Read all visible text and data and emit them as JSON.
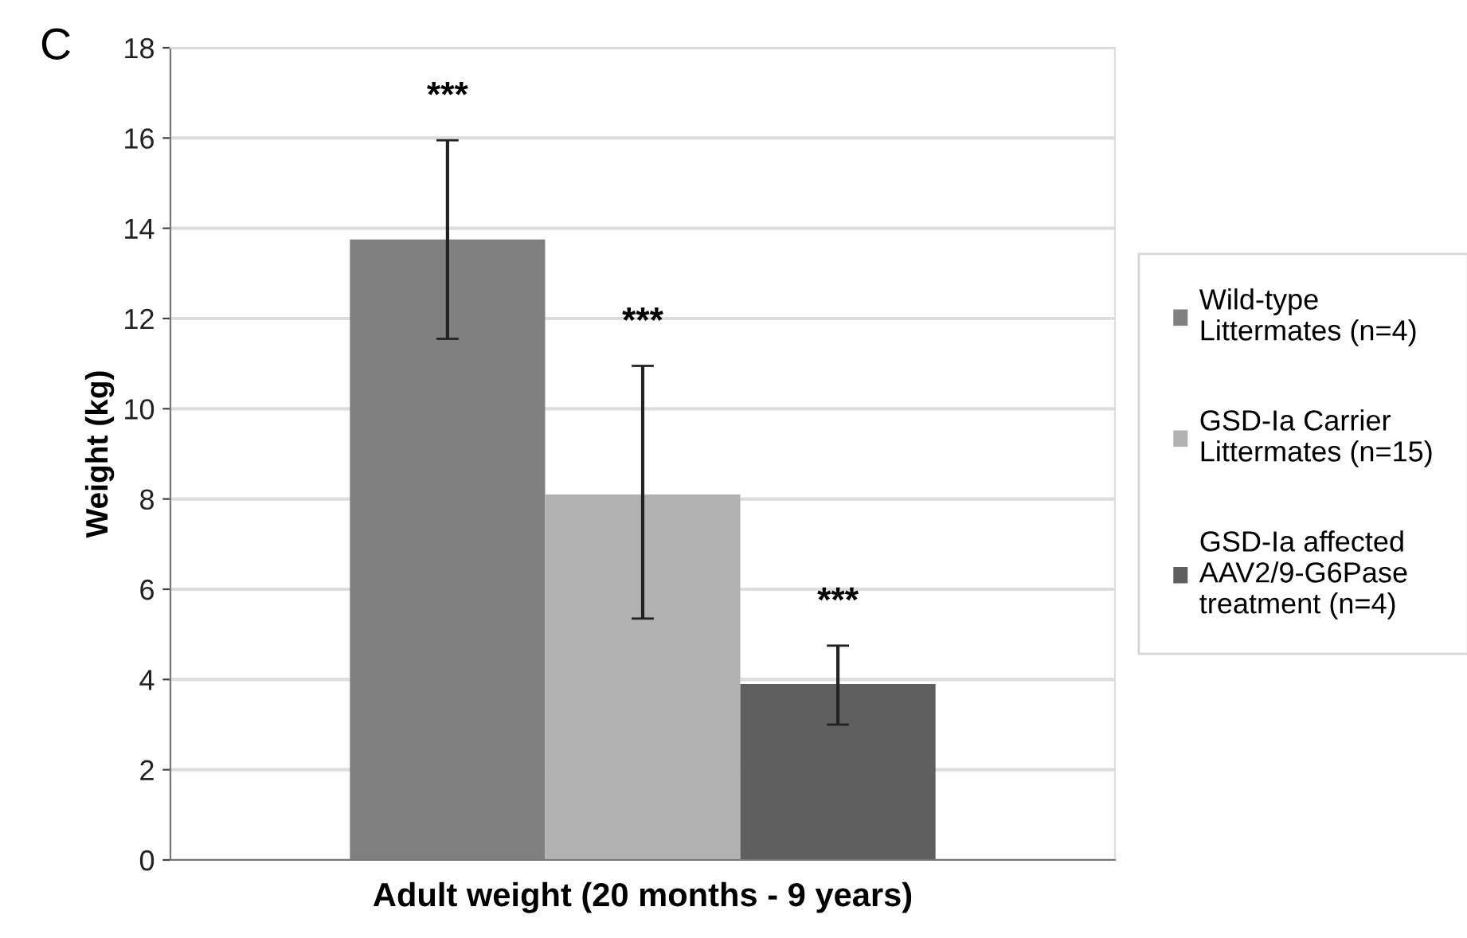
{
  "chart_data": {
    "type": "bar",
    "ylabel": "Weight (kg)",
    "categories": [
      "Adult weight (20 months - 9 years)"
    ],
    "series": [
      {
        "name": "Wild-type\nLittermates (n=4)",
        "color": "#808080",
        "values": [
          13.75
        ],
        "errors": [
          [
            11.55,
            15.95
          ]
        ]
      },
      {
        "name": "GSD-Ia Carrier\nLittermates (n=15)",
        "color": "#b2b2b2",
        "values": [
          8.1
        ],
        "errors": [
          [
            5.35,
            10.95
          ]
        ]
      },
      {
        "name": "GSD-Ia affected\nAAV2/9-G6Pase\ntreatment (n=4)",
        "color": "#5f5f5f",
        "values": [
          3.9
        ],
        "errors": [
          [
            3.0,
            4.75
          ]
        ]
      }
    ],
    "annotations": [
      "C",
      "***",
      "***",
      "***"
    ],
    "ylim": [
      0,
      18
    ],
    "yticks": [
      0,
      2,
      4,
      6,
      8,
      10,
      12,
      14,
      16,
      18
    ],
    "grid": "y",
    "legend": "right"
  }
}
